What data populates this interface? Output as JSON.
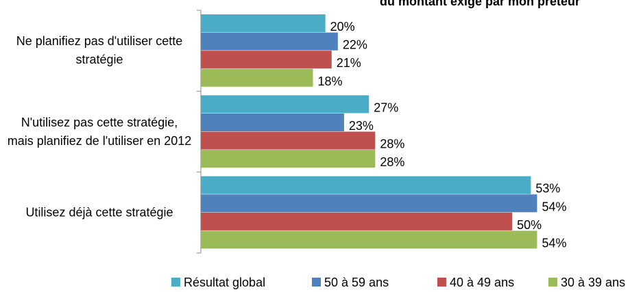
{
  "chart_data": {
    "type": "bar",
    "orientation": "horizontal",
    "title": "du montant exigé par mon prêteur",
    "categories": [
      "Ne planifiez pas d'utiliser cette stratégie",
      "N'utilisez pas cette stratégie, mais planifiez de l'utiliser en 2012",
      "Utilisez déjà cette stratégie"
    ],
    "series": [
      {
        "name": "Résultat global",
        "color": "#4bacc6",
        "values": [
          20,
          27,
          53
        ],
        "value_labels": [
          "20%",
          "27%",
          "53%"
        ]
      },
      {
        "name": "50 à 59 ans",
        "color": "#4f81bd",
        "values": [
          22,
          23,
          54
        ],
        "value_labels": [
          "22%",
          "23%",
          "54%"
        ]
      },
      {
        "name": "40 à 49 ans",
        "color": "#c0504d",
        "values": [
          21,
          28,
          50
        ],
        "value_labels": [
          "21%",
          "28%",
          "50%"
        ]
      },
      {
        "name": "30 à 39 ans",
        "color": "#9bbb59",
        "values": [
          18,
          28,
          54
        ],
        "value_labels": [
          "18%",
          "28%",
          "54%"
        ]
      }
    ],
    "xlim": [
      0,
      60
    ],
    "legend": "bottom"
  }
}
